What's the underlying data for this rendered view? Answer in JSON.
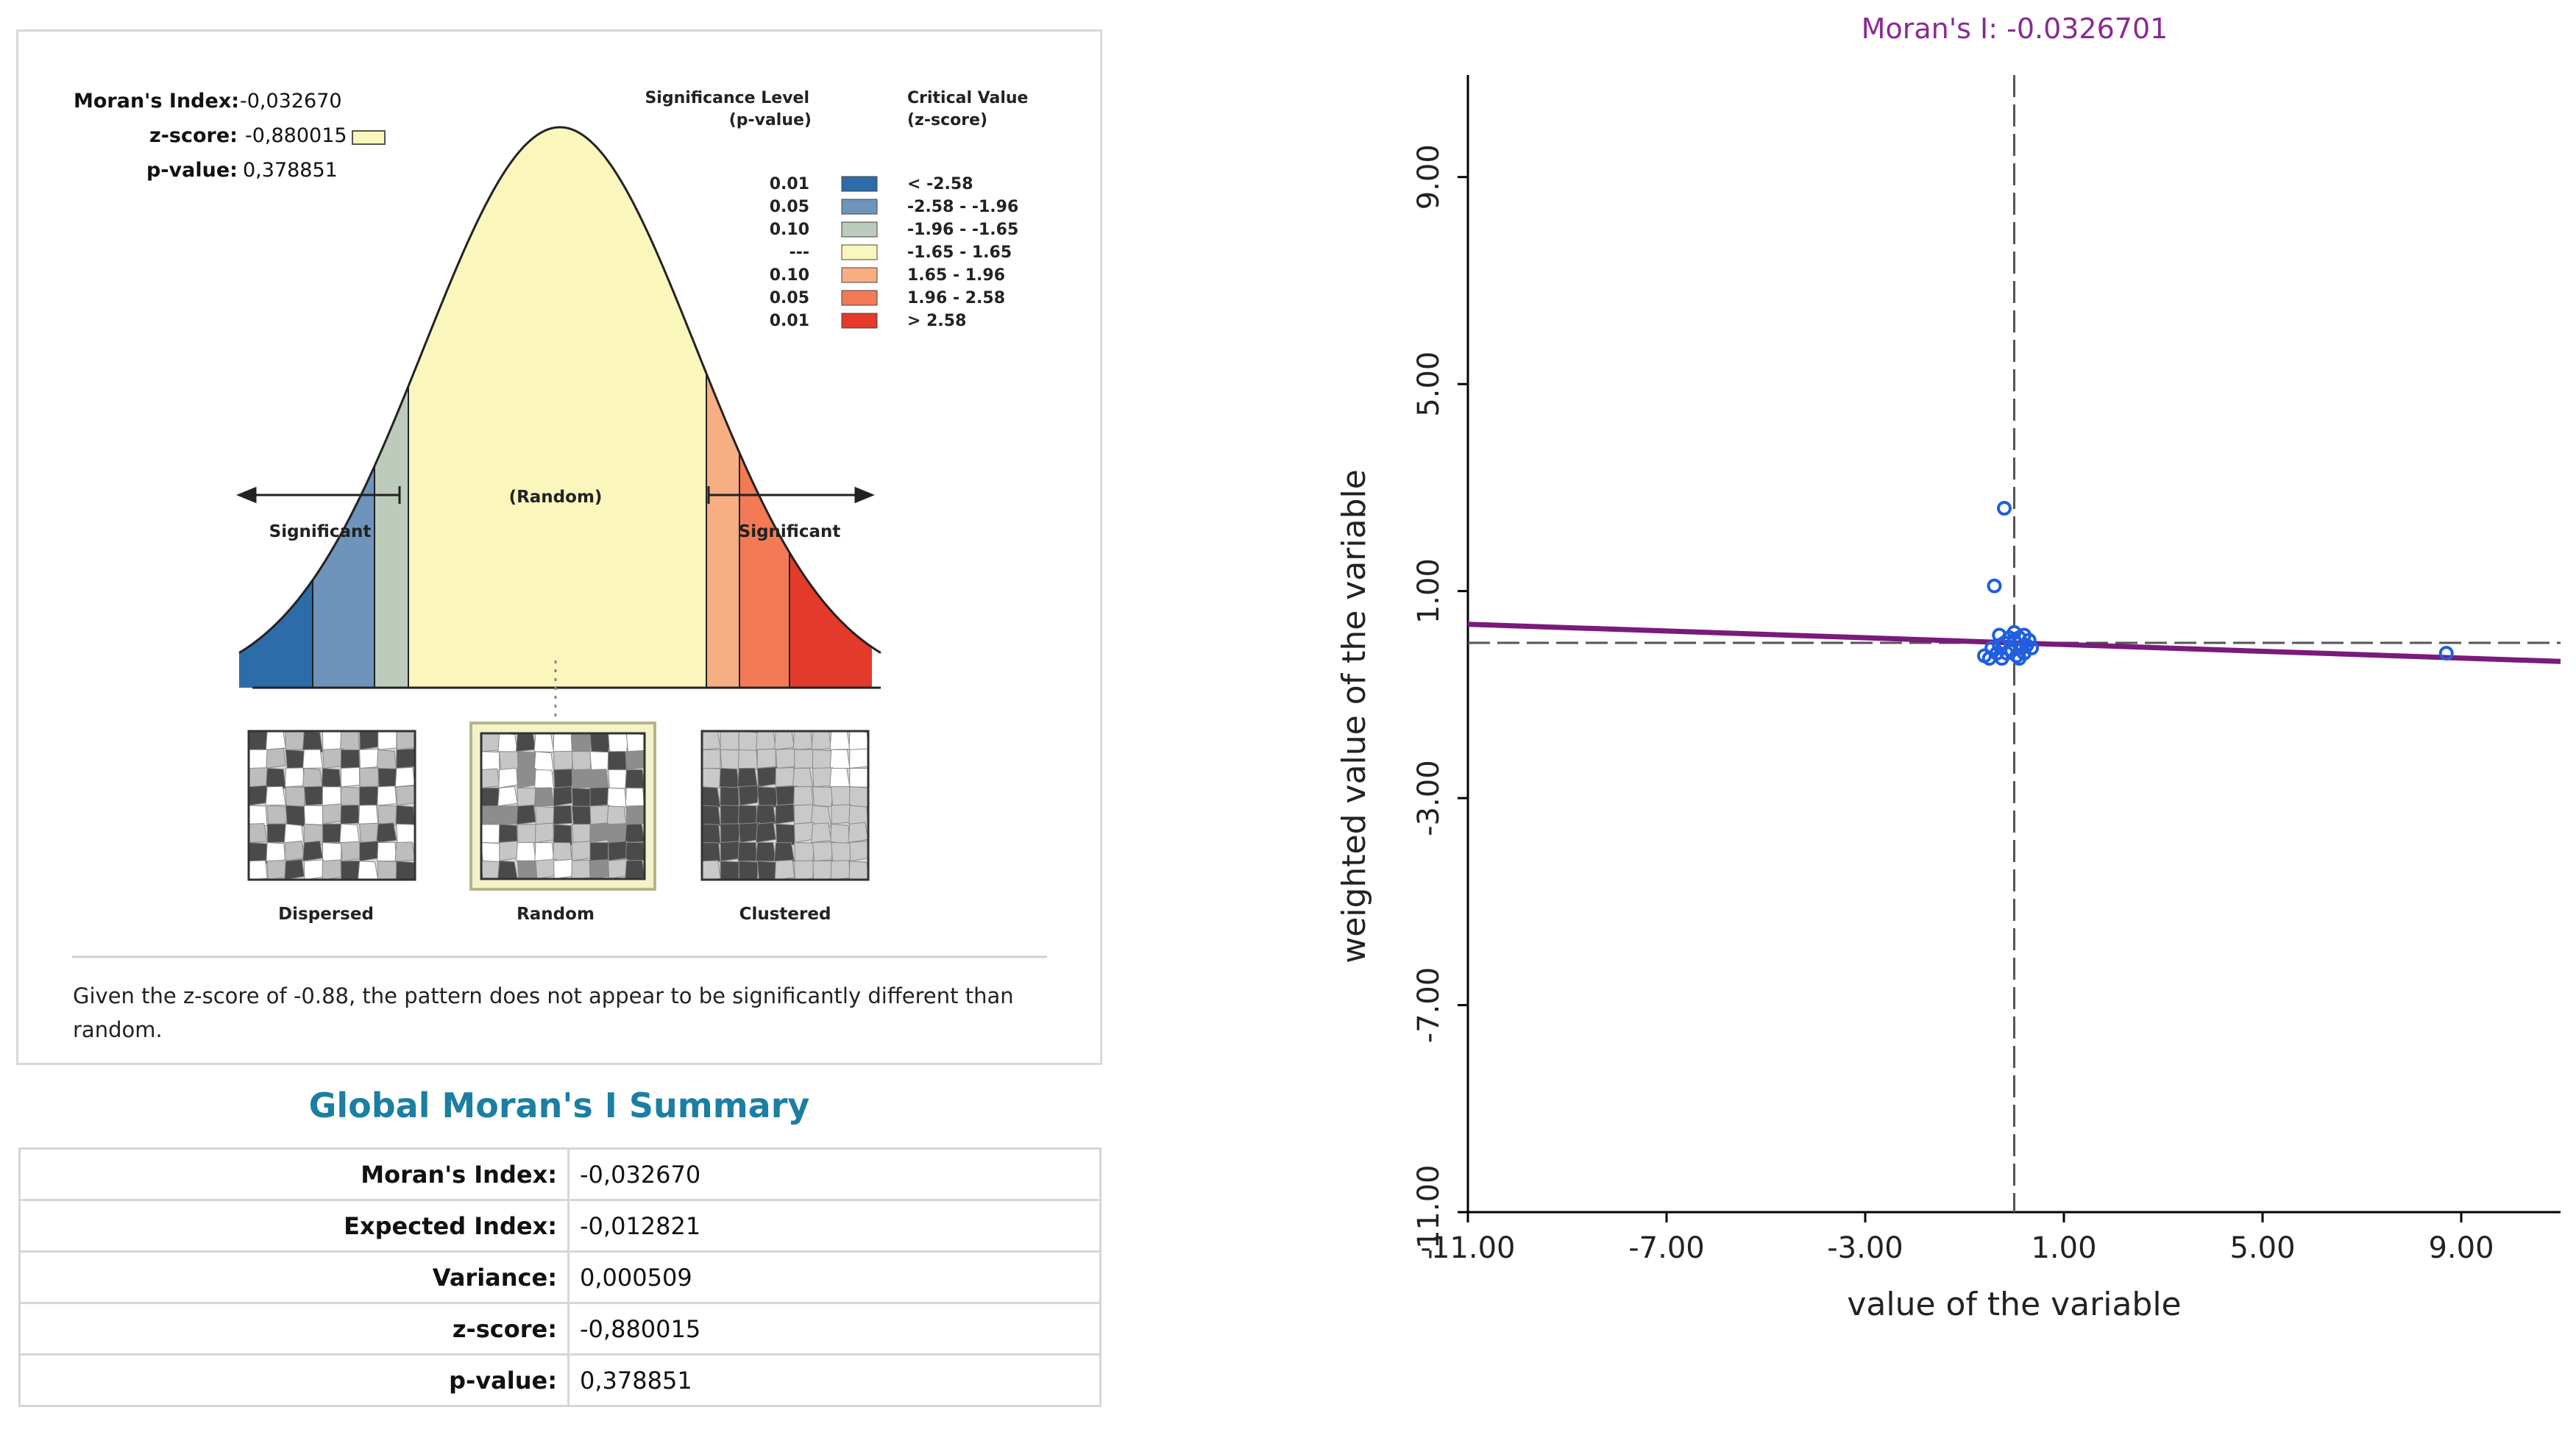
{
  "report": {
    "header": {
      "moran_label": "Moran's Index:",
      "moran_value": "-0,032670",
      "z_label": "z-score:",
      "z_value": "-0,880015",
      "p_label": "p-value:",
      "p_value": "0,378851"
    },
    "legend": {
      "sig_header_1": "Significance Level",
      "sig_header_2": "(p-value)",
      "crit_header_1": "Critical Value",
      "crit_header_2": "(z-score)",
      "rows": [
        {
          "p": "0.01",
          "range": "< -2.58",
          "color": "#2c6ca9"
        },
        {
          "p": "0.05",
          "range": "-2.58 - -1.96",
          "color": "#6f94bb"
        },
        {
          "p": "0.10",
          "range": "-1.96 - -1.65",
          "color": "#bccbbc"
        },
        {
          "p": "---",
          "range": "-1.65 - 1.65",
          "color": "#fbf6bc"
        },
        {
          "p": "0.10",
          "range": "1.65 - 1.96",
          "color": "#f6ae82"
        },
        {
          "p": "0.05",
          "range": "1.96 - 2.58",
          "color": "#f37a55"
        },
        {
          "p": "0.01",
          "range": "> 2.58",
          "color": "#e33a2c"
        }
      ]
    },
    "curve_labels": {
      "random": "(Random)",
      "significant_left": "Significant",
      "significant_right": "Significant"
    },
    "maps": {
      "dispersed": "Dispersed",
      "random": "Random",
      "clustered": "Clustered"
    },
    "interpretation": "Given the z-score of -0.88, the pattern does not appear to be significantly different than random."
  },
  "summary": {
    "title": "Global Moran's I Summary",
    "rows": [
      {
        "label": "Moran's Index:",
        "value": "-0,032670"
      },
      {
        "label": "Expected Index:",
        "value": "-0,012821"
      },
      {
        "label": "Variance:",
        "value": "0,000509"
      },
      {
        "label": "z-score:",
        "value": "-0,880015"
      },
      {
        "label": "p-value:",
        "value": "0,378851"
      }
    ]
  },
  "chart_data": {
    "type": "scatter",
    "title": "Moran's I: -0.0326701",
    "xlabel": "value of the variable",
    "ylabel": "weighted value of the variable",
    "xlim": [
      -11,
      11
    ],
    "ylim": [
      -11,
      11
    ],
    "x_ticks": [
      -11,
      -7,
      -3,
      1,
      5,
      9
    ],
    "x_tick_labels": [
      "-11.00",
      "-7.00",
      "-3.00",
      "1.00",
      "5.00",
      "9.00"
    ],
    "y_ticks": [
      -11,
      -7,
      -3,
      1,
      5,
      9
    ],
    "y_tick_labels": [
      "-11.00",
      "-7.00",
      "-3.00",
      "1.00",
      "5.00",
      "9.00"
    ],
    "mean_x": 0.0,
    "mean_y": 0.0,
    "regression": {
      "slope": -0.0326701,
      "intercept": 0.0
    },
    "points": [
      {
        "x": -0.2,
        "y": 2.6
      },
      {
        "x": -0.4,
        "y": 1.1
      },
      {
        "x": 8.7,
        "y": -0.2
      },
      {
        "x": -0.6,
        "y": -0.25
      },
      {
        "x": -0.5,
        "y": -0.3
      },
      {
        "x": -0.45,
        "y": -0.1
      },
      {
        "x": -0.35,
        "y": -0.2
      },
      {
        "x": -0.3,
        "y": -0.05
      },
      {
        "x": -0.25,
        "y": -0.3
      },
      {
        "x": -0.2,
        "y": 0.0
      },
      {
        "x": -0.15,
        "y": -0.2
      },
      {
        "x": -0.1,
        "y": 0.1
      },
      {
        "x": -0.05,
        "y": -0.15
      },
      {
        "x": 0.0,
        "y": 0.05
      },
      {
        "x": 0.05,
        "y": -0.25
      },
      {
        "x": 0.1,
        "y": 0.1
      },
      {
        "x": 0.15,
        "y": -0.1
      },
      {
        "x": 0.2,
        "y": 0.15
      },
      {
        "x": 0.25,
        "y": -0.05
      },
      {
        "x": 0.3,
        "y": 0.05
      },
      {
        "x": 0.35,
        "y": -0.1
      },
      {
        "x": 0.1,
        "y": -0.3
      },
      {
        "x": 0.2,
        "y": -0.2
      },
      {
        "x": -0.3,
        "y": 0.15
      },
      {
        "x": 0.0,
        "y": 0.2
      }
    ],
    "colors": {
      "title": "#8a2a93",
      "line": "#7a1a7a",
      "point": "#1f5fe0",
      "axis": "#000000",
      "ref": "#555555"
    }
  }
}
